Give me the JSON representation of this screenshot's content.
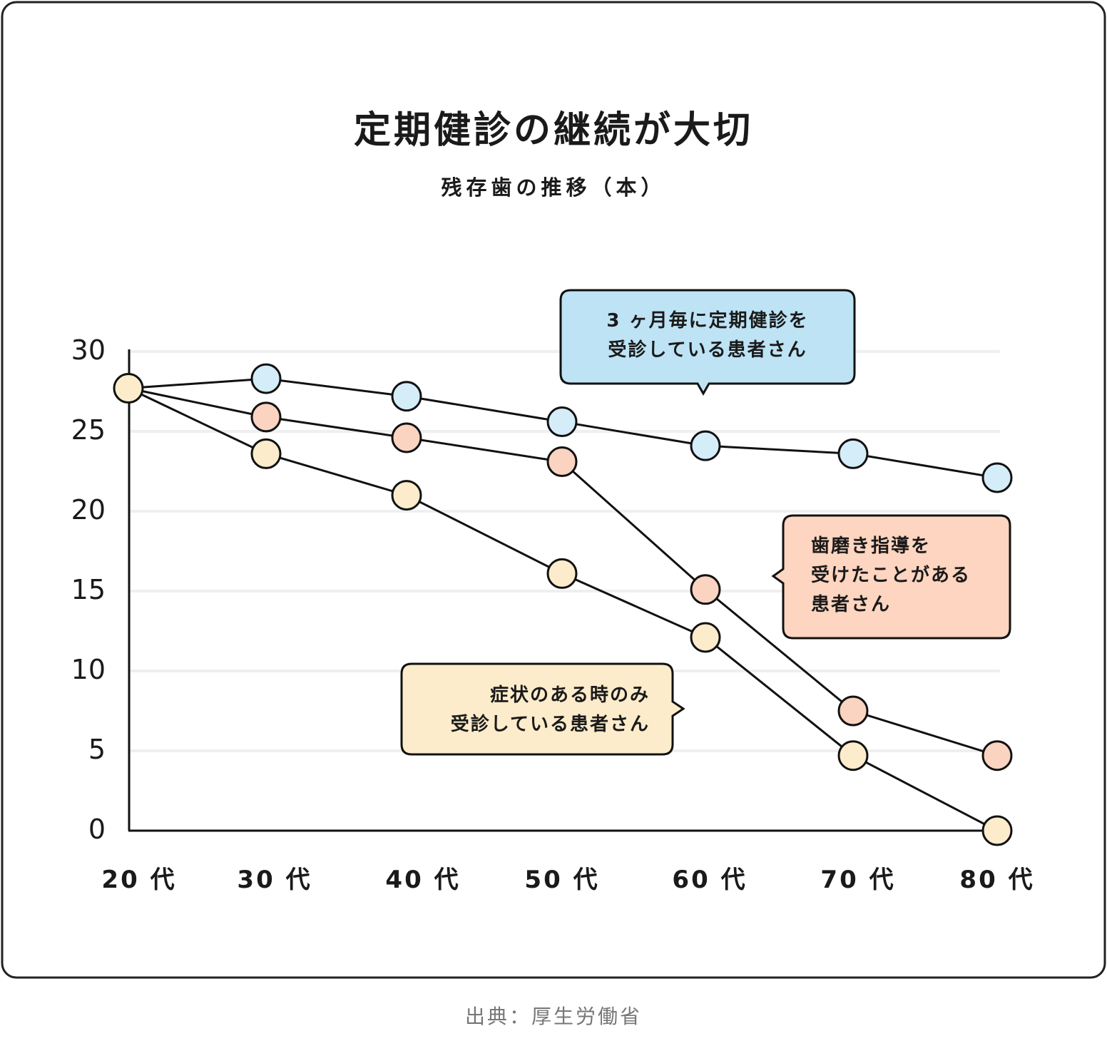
{
  "title": "定期健診の継続が大切",
  "source": "出典：厚生労働省",
  "chart_data": {
    "type": "line",
    "title": "定期健診の継続が大切",
    "subtitle": "残存歯の推移（本）",
    "categories": [
      "20 代",
      "30 代",
      "40 代",
      "50 代",
      "60 代",
      "70 代",
      "80 代"
    ],
    "ylim": [
      0,
      30
    ],
    "yticks": [
      "0",
      "5",
      "10",
      "15",
      "20",
      "25",
      "30"
    ],
    "grid": true,
    "series": [
      {
        "name": "3ヶ月毎に定期健診を受診している患者さん",
        "label_lines": [
          "3 ヶ月毎に定期健診を",
          "受診している患者さん"
        ],
        "color": "#d4edf9",
        "callout_color": "#bde3f5",
        "values": [
          27.7,
          28.3,
          27.2,
          25.6,
          24.1,
          23.6,
          22.1
        ]
      },
      {
        "name": "歯磨き指導を受けたことがある患者さん",
        "label_lines": [
          "歯磨き指導を",
          "受けたことがある",
          "患者さん"
        ],
        "color": "#fbd3c1",
        "callout_color": "#fdd5c0",
        "values": [
          27.7,
          25.9,
          24.6,
          23.1,
          15.1,
          7.5,
          4.7
        ]
      },
      {
        "name": "症状のある時のみ受診している患者さん",
        "label_lines": [
          "症状のある時のみ",
          "受診している患者さん"
        ],
        "color": "#fdeccb",
        "callout_color": "#fdeccb",
        "values": [
          27.7,
          23.6,
          21.0,
          16.1,
          12.1,
          4.7,
          0
        ]
      }
    ]
  }
}
